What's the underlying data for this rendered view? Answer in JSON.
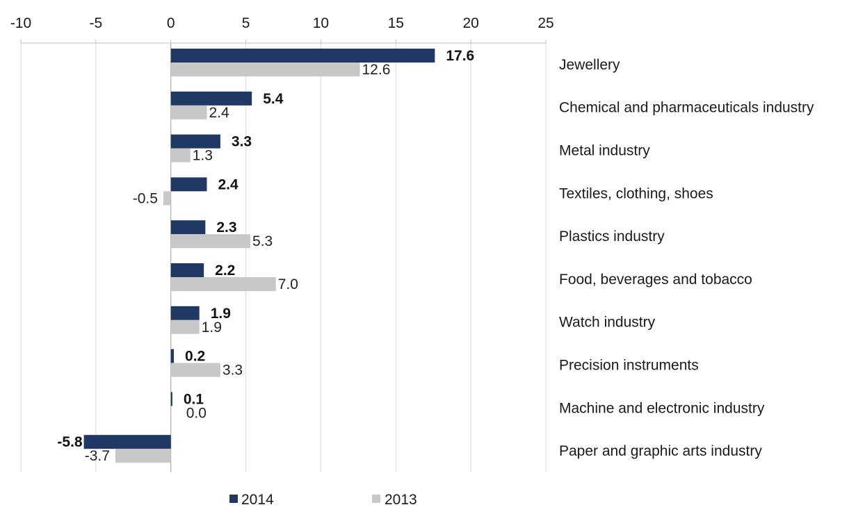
{
  "chart_data": {
    "type": "bar",
    "orientation": "horizontal",
    "title": "",
    "xlabel": "",
    "ylabel": "",
    "xlim": [
      -10,
      25
    ],
    "x_ticks": [
      -10,
      -5,
      0,
      5,
      10,
      15,
      20,
      25
    ],
    "x_axis_position": "top",
    "grid": true,
    "legend_position": "bottom",
    "categories": [
      "Jewellery",
      "Chemical and pharmaceuticals industry",
      "Metal industry",
      "Textiles, clothing, shoes",
      "Plastics industry",
      "Food, beverages and tobacco",
      "Watch industry",
      "Precision instruments",
      "Machine and electronic industry",
      "Paper and graphic arts industry"
    ],
    "series": [
      {
        "name": "2014",
        "color": "#1f3864",
        "values": [
          17.6,
          5.4,
          3.3,
          2.4,
          2.3,
          2.2,
          1.9,
          0.2,
          0.1,
          -5.8
        ],
        "labels": [
          "17.6",
          "5.4",
          "3.3",
          "2.4",
          "2.3",
          "2.2",
          "1.9",
          "0.2",
          "0.1",
          "-5.8"
        ]
      },
      {
        "name": "2013",
        "color": "#c8c8c8",
        "values": [
          12.6,
          2.4,
          1.3,
          -0.5,
          5.3,
          7.0,
          1.9,
          3.3,
          0.0,
          -3.7
        ],
        "labels": [
          "12.6",
          "2.4",
          "1.3",
          "-0.5",
          "5.3",
          "7.0",
          "1.9",
          "3.3",
          "0.0",
          "-3.7"
        ]
      }
    ]
  }
}
